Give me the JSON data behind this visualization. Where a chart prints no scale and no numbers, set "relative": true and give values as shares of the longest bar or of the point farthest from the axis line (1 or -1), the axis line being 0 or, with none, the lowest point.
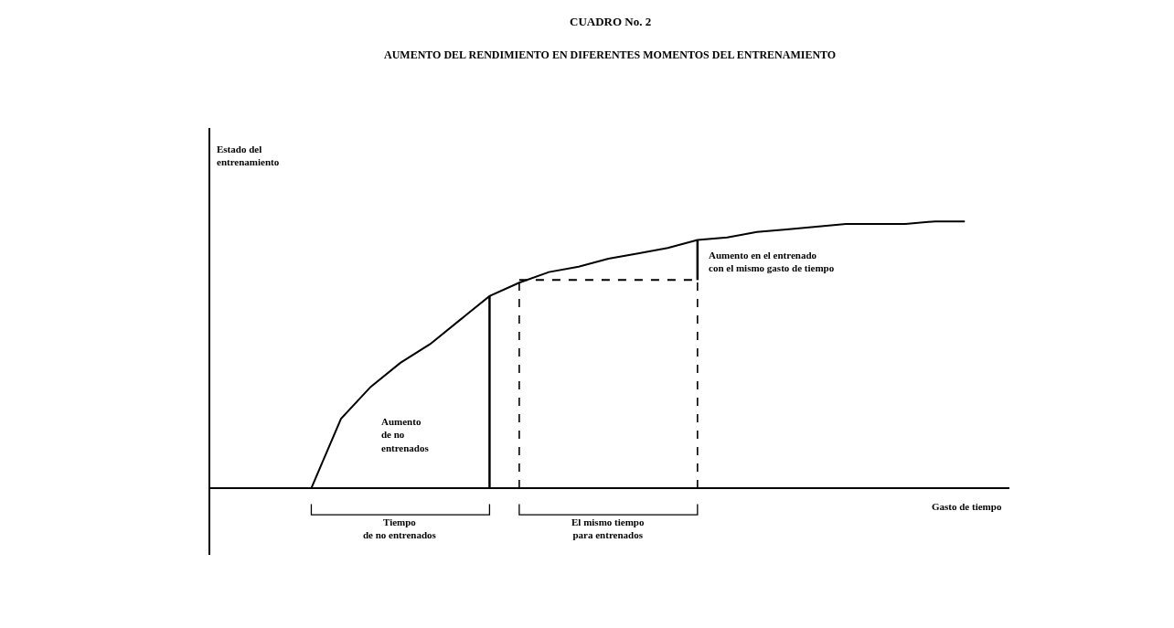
{
  "chart_data": {
    "type": "line",
    "relative": true,
    "title": "CUADRO No. 2",
    "subtitle": "AUMENTO DEL RENDIMIENTO EN DIFERENTES MOMENTOS DEL ENTRENAMIENTO",
    "xlabel": "Gasto de tiempo",
    "categories": [
      null,
      null,
      null,
      null,
      null,
      null,
      null,
      null,
      null,
      null,
      null,
      null,
      null,
      null,
      null,
      null,
      null,
      null,
      null,
      null,
      null,
      null,
      null,
      null,
      null,
      null,
      null,
      null
    ],
    "series": [
      {
        "color": "#000000",
        "line_style": "solid",
        "values": [
          null,
          null,
          null,
          null,
          0,
          0.26,
          0.38,
          0.47,
          0.54,
          0.63,
          0.72,
          0.77,
          0.81,
          0.83,
          0.86,
          0.88,
          0.9,
          0.93,
          0.94,
          0.96,
          0.97,
          0.98,
          0.99,
          0.99,
          0.99,
          1.0,
          1.0,
          null
        ]
      },
      {
        "color": "#000000",
        "line_style": "dashed",
        "values": [
          null,
          null,
          null,
          null,
          null,
          null,
          null,
          null,
          null,
          null,
          null,
          0.78,
          0.78,
          0.78,
          0.78,
          0.78,
          0.78,
          0.78,
          null,
          null,
          null,
          null,
          null,
          null,
          null,
          null,
          null,
          null
        ]
      }
    ],
    "annotations": [
      "Estado del\nentrenamiento",
      "Aumento\nde no\nentrenados",
      "Aumento en el entrenado\ncon el mismo gasto de tiempo",
      "Tiempo\nde no entrenados",
      "El mismo tiempo\npara entrenados"
    ]
  }
}
